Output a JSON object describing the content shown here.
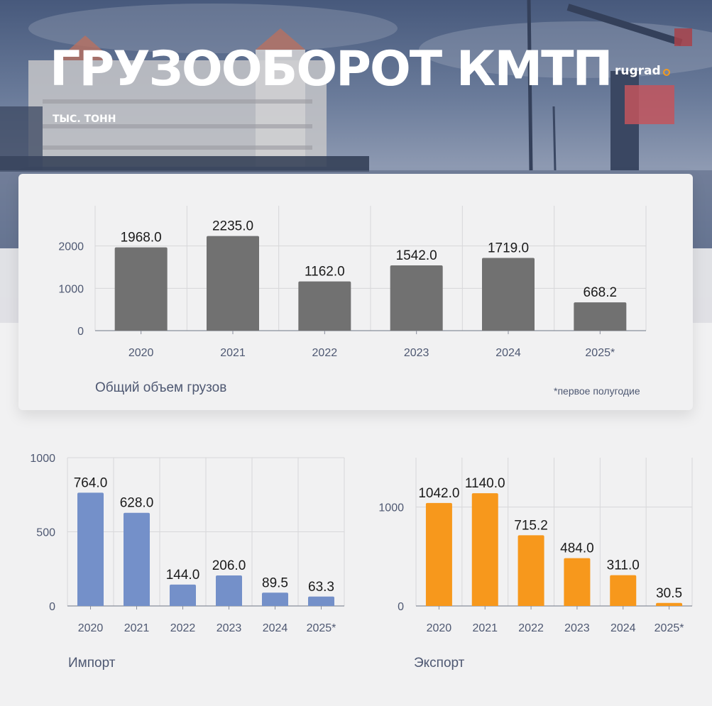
{
  "header": {
    "title": "ГРУЗООБОРОТ КМТП",
    "subtitle": "ТЫС. ТОНН",
    "logo": "rugrad"
  },
  "colors": {
    "total": "#717171",
    "import": "#7490c9",
    "export": "#f7981c",
    "label": "#1a1a1a",
    "axis": "#4e5872",
    "grid": "#d7d7d9"
  },
  "chart_data": [
    {
      "id": "total",
      "type": "bar",
      "title": "Общий объем грузов",
      "footnote": "*первое полугодие",
      "categories": [
        "2020",
        "2021",
        "2022",
        "2023",
        "2024",
        "2025*"
      ],
      "values": [
        1968.0,
        2235.0,
        1162.0,
        1542.0,
        1719.0,
        668.2
      ],
      "value_labels": [
        "1968.0",
        "2235.0",
        "1162.0",
        "1542.0",
        "1719.0",
        "668.2"
      ],
      "yticks": [
        0,
        1000,
        2000
      ],
      "ylim": [
        0,
        2950
      ],
      "grid": true
    },
    {
      "id": "import",
      "type": "bar",
      "title": "Импорт",
      "categories": [
        "2020",
        "2021",
        "2022",
        "2023",
        "2024",
        "2025*"
      ],
      "values": [
        764.0,
        628.0,
        144.0,
        206.0,
        89.5,
        63.3
      ],
      "value_labels": [
        "764.0",
        "628.0",
        "144.0",
        "206.0",
        "89.5",
        "63.3"
      ],
      "yticks": [
        0,
        500,
        1000
      ],
      "ylim": [
        0,
        1000
      ],
      "grid": true
    },
    {
      "id": "export",
      "type": "bar",
      "title": "Экспорт",
      "categories": [
        "2020",
        "2021",
        "2022",
        "2023",
        "2024",
        "2025*"
      ],
      "values": [
        1042.0,
        1140.0,
        715.2,
        484.0,
        311.0,
        30.5
      ],
      "value_labels": [
        "1042.0",
        "1140.0",
        "715.2",
        "484.0",
        "311.0",
        "30.5"
      ],
      "yticks": [
        0,
        1000
      ],
      "ylim": [
        0,
        1500
      ],
      "grid": true
    }
  ]
}
